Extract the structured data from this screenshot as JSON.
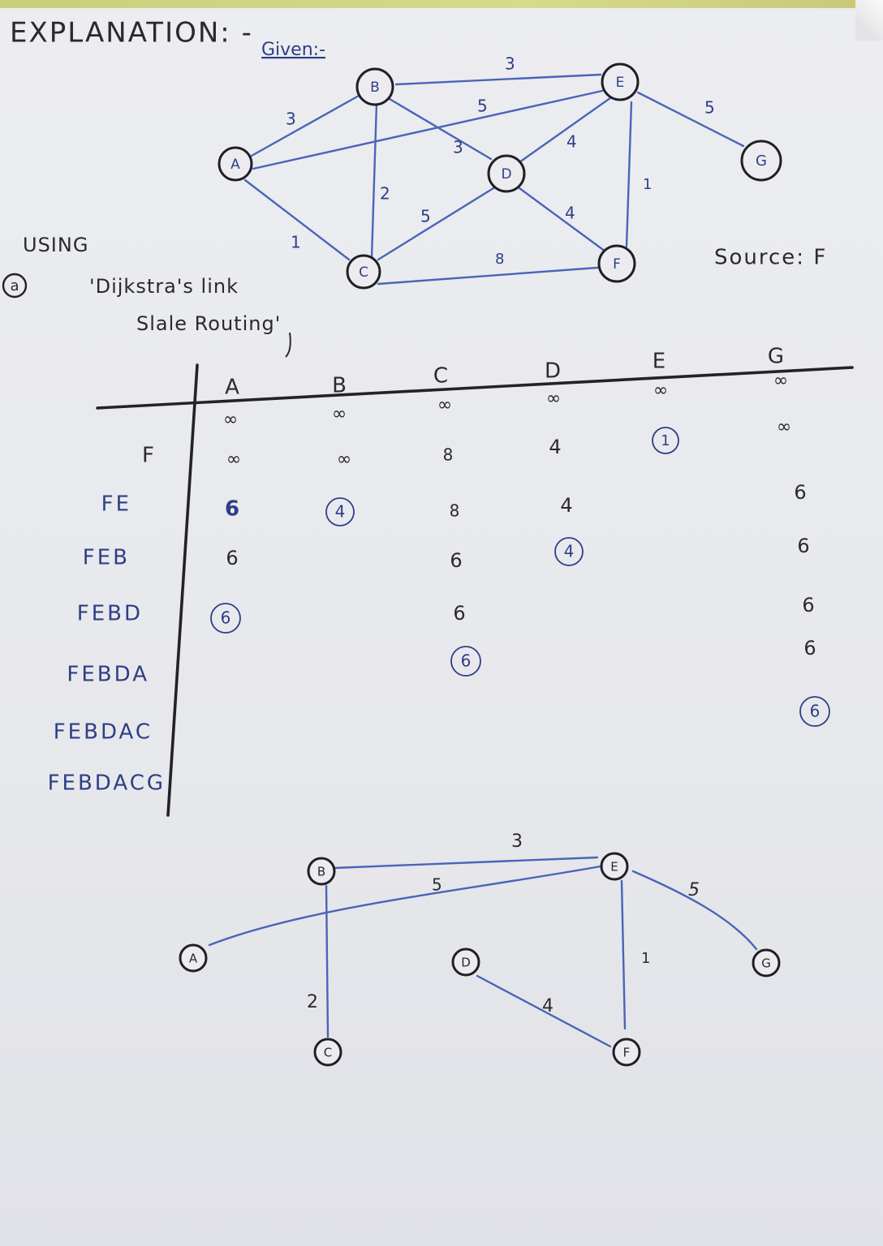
{
  "heading": "EXPLANATION: -",
  "given_label": "Given:-",
  "source_label": "Source: F",
  "question_marker": "a",
  "method_line1": "USING",
  "method_line2": "'Dijkstra's link",
  "method_line3": "Slale Routing'",
  "graph": {
    "nodes": [
      "A",
      "B",
      "C",
      "D",
      "E",
      "F",
      "G"
    ],
    "edge_labels": {
      "A_B": "3",
      "B_E": "3",
      "A_E": "5",
      "B_D": "3",
      "B_C": "2",
      "E_D": "4",
      "E_G": "5",
      "E_F": "1",
      "A_C": "1",
      "C_D": "5",
      "D_F": "4",
      "C_F": "8"
    }
  },
  "table": {
    "columns": [
      "A",
      "B",
      "C",
      "D",
      "E",
      "G"
    ],
    "initial": [
      "∞",
      "∞",
      "∞",
      "∞",
      "∞",
      "∞"
    ],
    "rows": [
      {
        "label": "",
        "values": [
          "∞",
          "∞",
          "∞",
          "",
          "",
          "∞"
        ]
      },
      {
        "label": "F",
        "values": [
          "∞",
          "∞",
          "8",
          "4",
          "1",
          ""
        ]
      },
      {
        "label": "FE",
        "values": [
          "6",
          "4",
          "8",
          "4",
          "",
          "6"
        ]
      },
      {
        "label": "FEB",
        "values": [
          "6",
          "",
          "6",
          "4",
          "",
          "6"
        ]
      },
      {
        "label": "FEBD",
        "values": [
          "6",
          "",
          "6",
          "",
          "",
          "6"
        ]
      },
      {
        "label": "FEBDA",
        "values": [
          "",
          "",
          "6",
          "",
          "",
          "6"
        ]
      },
      {
        "label": "FEBDAC",
        "values": [
          "",
          "",
          "",
          "",
          "",
          "6"
        ]
      },
      {
        "label": "FEBDACG",
        "values": [
          "",
          "",
          "",
          "",
          "",
          ""
        ]
      }
    ]
  },
  "tree": {
    "nodes": [
      "A",
      "B",
      "C",
      "D",
      "E",
      "F",
      "G"
    ],
    "edge_labels": {
      "B_E": "3",
      "A_E": "5",
      "E_G": "5",
      "E_F": "1",
      "B_C": "2",
      "D_F": "4"
    }
  }
}
